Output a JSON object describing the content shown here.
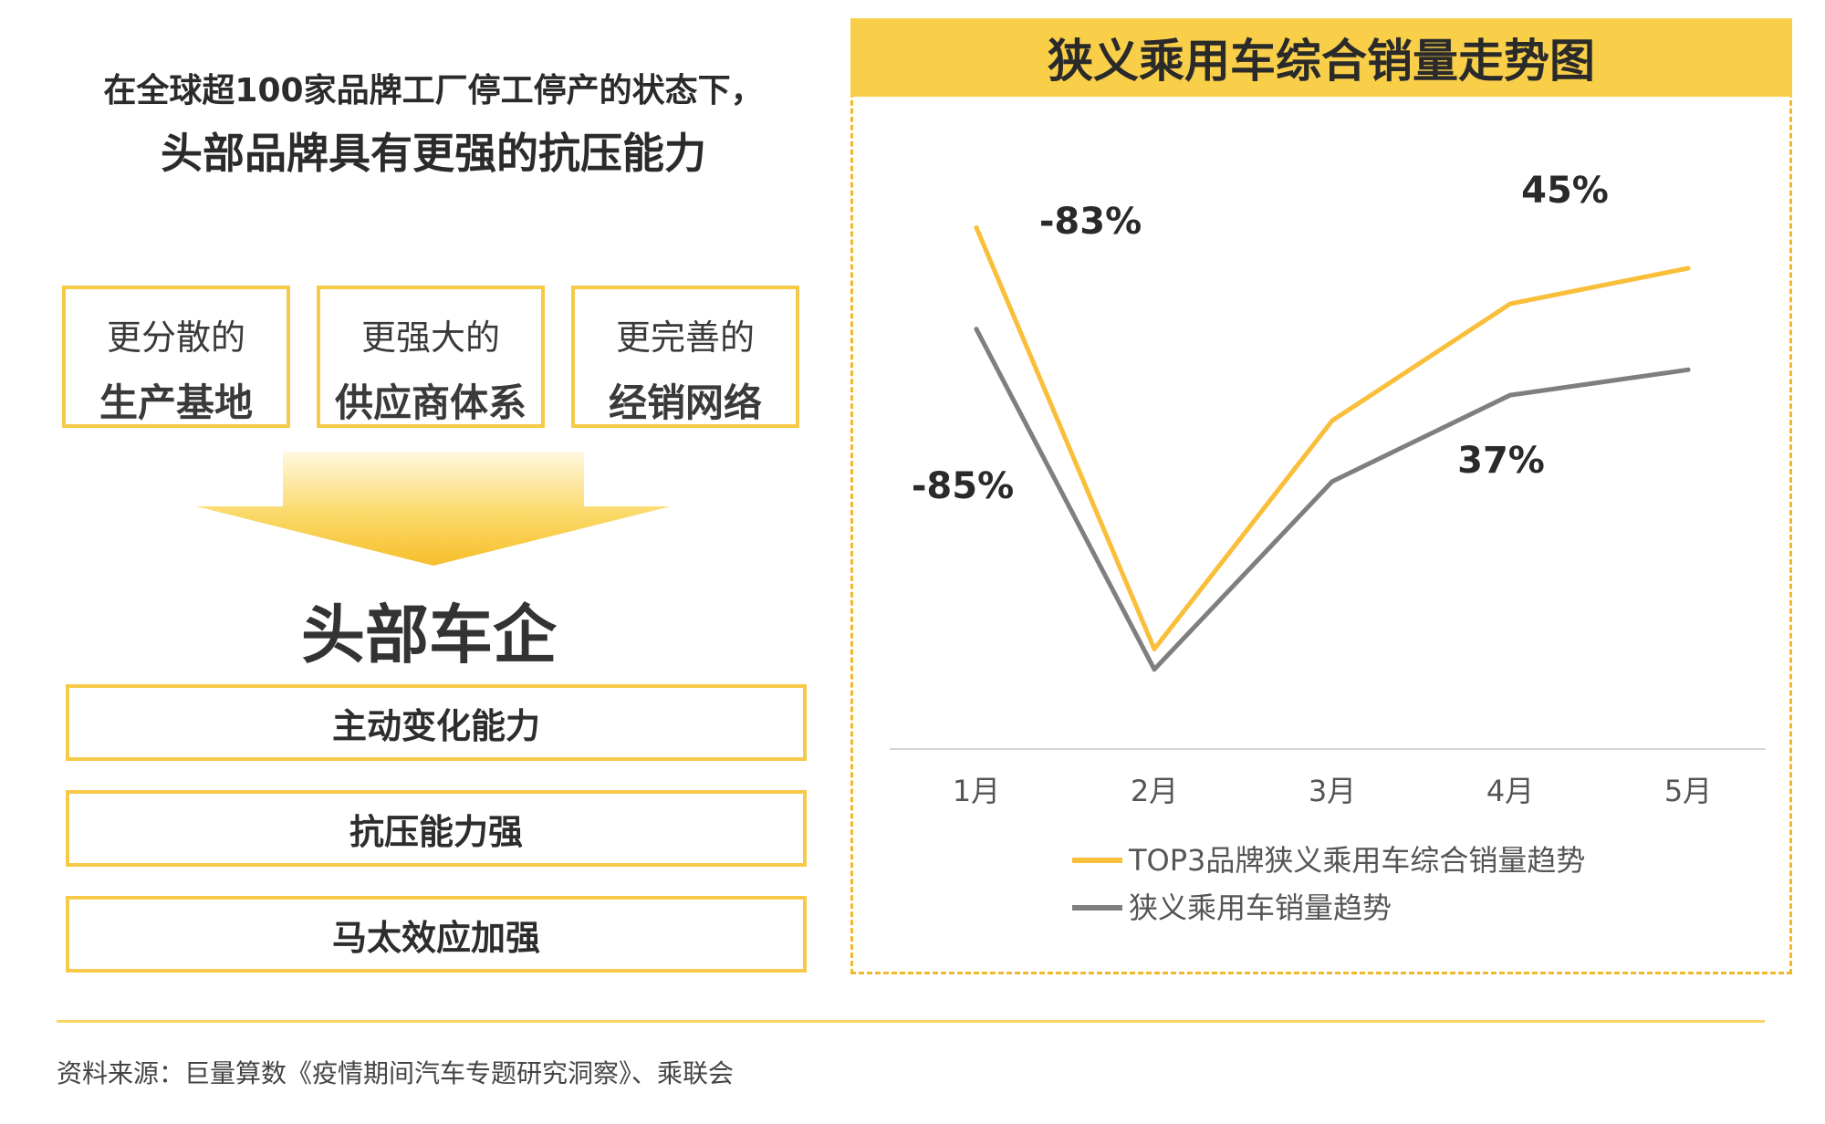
{
  "left": {
    "headline_line1": "在全球超100家品牌工厂停工停产的状态下，",
    "headline_line2": "头部品牌具有更强的抗压能力",
    "pillars": [
      {
        "top": "更分散的",
        "bottom": "生产基地"
      },
      {
        "top": "更强大的",
        "bottom": "供应商体系"
      },
      {
        "top": "更完善的",
        "bottom": "经销网络"
      }
    ],
    "center_title": "头部车企",
    "capabilities": [
      "主动变化能力",
      "抗压能力强",
      "马太效应加强"
    ]
  },
  "right": {
    "panel_title": "狭义乘用车综合销量走势图"
  },
  "chart_data": {
    "type": "line",
    "title": "狭义乘用车综合销量走势图",
    "categories": [
      "1月",
      "2月",
      "3月",
      "4月",
      "5月"
    ],
    "series": [
      {
        "name": "TOP3品牌狭义乘用车综合销量趋势",
        "color": "#f9bf3b",
        "values": [
          100,
          17,
          62,
          85,
          92
        ]
      },
      {
        "name": "狭义乘用车销量趋势",
        "color": "#7f7f7f",
        "values": [
          80,
          13,
          50,
          67,
          72
        ]
      }
    ],
    "annotations": [
      {
        "text": "-83%",
        "series": 0,
        "between": [
          0,
          1
        ]
      },
      {
        "text": "-85%",
        "series": 1,
        "between": [
          0,
          1
        ]
      },
      {
        "text": "45%",
        "series": 0,
        "between": [
          3,
          4
        ]
      },
      {
        "text": "37%",
        "series": 1,
        "between": [
          3,
          4
        ]
      }
    ],
    "ylim": [
      0,
      115
    ],
    "grid": false,
    "legend_position": "bottom"
  },
  "footer": {
    "source": "资料来源：巨量算数《疫情期间汽车专题研究洞察》、乘联会"
  }
}
